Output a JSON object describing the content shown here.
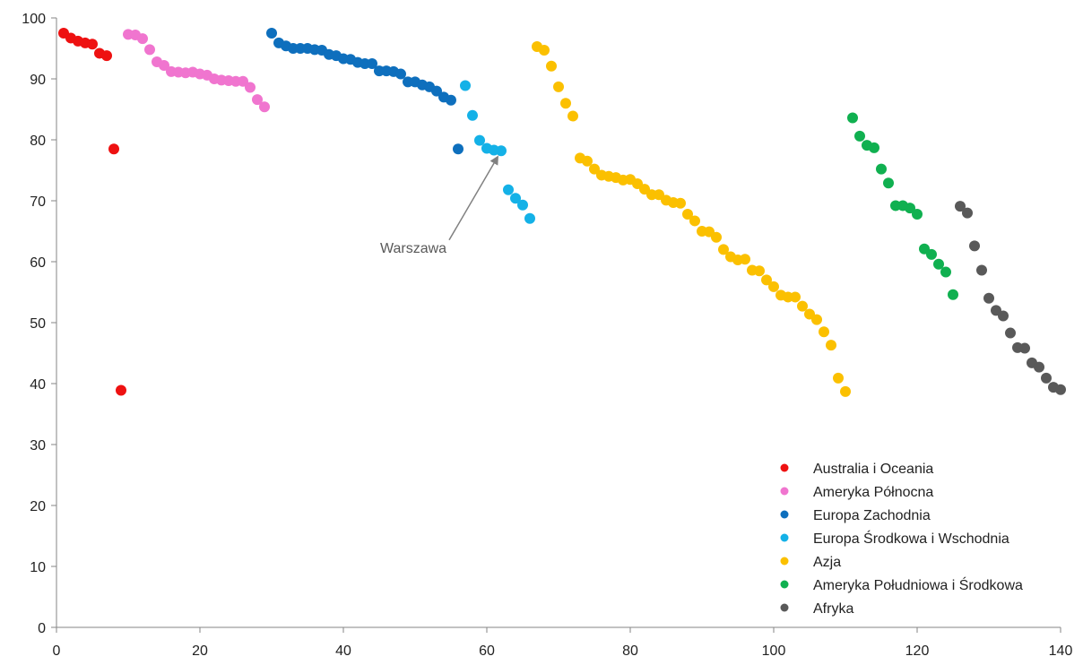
{
  "chart_data": {
    "type": "scatter",
    "title": "",
    "xlabel": "",
    "ylabel": "",
    "xlim": [
      0,
      140
    ],
    "ylim": [
      0,
      100
    ],
    "x_ticks": [
      "0",
      "20",
      "40",
      "60",
      "80",
      "100",
      "120",
      "140"
    ],
    "y_ticks": [
      "0",
      "10",
      "20",
      "30",
      "40",
      "50",
      "60",
      "70",
      "80",
      "90",
      "100"
    ],
    "grid": false,
    "legend_position": "bottom-right",
    "series": [
      {
        "name": "Australia i Oceania",
        "color": "#ee1111",
        "points": [
          [
            1,
            97.5
          ],
          [
            2,
            96.7
          ],
          [
            3,
            96.2
          ],
          [
            4,
            95.9
          ],
          [
            5,
            95.7
          ],
          [
            6,
            94.2
          ],
          [
            7,
            93.8
          ],
          [
            8,
            78.5
          ],
          [
            9,
            38.9
          ]
        ]
      },
      {
        "name": "Ameryka Północna",
        "color": "#f075cf",
        "points": [
          [
            10,
            97.3
          ],
          [
            11,
            97.2
          ],
          [
            12,
            96.6
          ],
          [
            13,
            94.8
          ],
          [
            14,
            92.8
          ],
          [
            15,
            92.2
          ],
          [
            16,
            91.2
          ],
          [
            17,
            91.1
          ],
          [
            18,
            91.0
          ],
          [
            19,
            91.1
          ],
          [
            20,
            90.8
          ],
          [
            21,
            90.6
          ],
          [
            22,
            90.0
          ],
          [
            23,
            89.8
          ],
          [
            24,
            89.7
          ],
          [
            25,
            89.6
          ],
          [
            26,
            89.6
          ],
          [
            27,
            88.6
          ],
          [
            28,
            86.6
          ],
          [
            29,
            85.4
          ]
        ]
      },
      {
        "name": "Europa Zachodnia",
        "color": "#0e6fbd",
        "points": [
          [
            30,
            97.5
          ],
          [
            31,
            95.9
          ],
          [
            32,
            95.4
          ],
          [
            33,
            95.0
          ],
          [
            34,
            95.0
          ],
          [
            35,
            95.0
          ],
          [
            36,
            94.8
          ],
          [
            37,
            94.7
          ],
          [
            38,
            94.0
          ],
          [
            39,
            93.8
          ],
          [
            40,
            93.3
          ],
          [
            41,
            93.2
          ],
          [
            42,
            92.7
          ],
          [
            43,
            92.5
          ],
          [
            44,
            92.5
          ],
          [
            45,
            91.3
          ],
          [
            46,
            91.3
          ],
          [
            47,
            91.2
          ],
          [
            48,
            90.8
          ],
          [
            49,
            89.5
          ],
          [
            50,
            89.5
          ],
          [
            51,
            89.0
          ],
          [
            52,
            88.7
          ],
          [
            53,
            88.0
          ],
          [
            54,
            87.0
          ],
          [
            55,
            86.5
          ],
          [
            56,
            78.5
          ]
        ]
      },
      {
        "name": "Europa Środkowa i Wschodnia",
        "color": "#14b1e7",
        "points": [
          [
            57,
            88.9
          ],
          [
            58,
            84.0
          ],
          [
            59,
            79.9
          ],
          [
            60,
            78.6
          ],
          [
            61,
            78.3
          ],
          [
            62,
            78.2
          ],
          [
            63,
            71.8
          ],
          [
            64,
            70.4
          ],
          [
            65,
            69.3
          ],
          [
            66,
            67.1
          ]
        ]
      },
      {
        "name": "Azja",
        "color": "#fbc000",
        "points": [
          [
            67,
            95.3
          ],
          [
            68,
            94.7
          ],
          [
            69,
            92.1
          ],
          [
            70,
            88.7
          ],
          [
            71,
            86.0
          ],
          [
            72,
            83.9
          ],
          [
            73,
            77.0
          ],
          [
            74,
            76.5
          ],
          [
            75,
            75.2
          ],
          [
            76,
            74.2
          ],
          [
            77,
            74.0
          ],
          [
            78,
            73.8
          ],
          [
            79,
            73.4
          ],
          [
            80,
            73.5
          ],
          [
            81,
            72.8
          ],
          [
            82,
            71.9
          ],
          [
            83,
            71.0
          ],
          [
            84,
            71.0
          ],
          [
            85,
            70.1
          ],
          [
            86,
            69.7
          ],
          [
            87,
            69.6
          ],
          [
            88,
            67.8
          ],
          [
            89,
            66.7
          ],
          [
            90,
            65.0
          ],
          [
            91,
            64.9
          ],
          [
            92,
            64.0
          ],
          [
            93,
            62.0
          ],
          [
            94,
            60.8
          ],
          [
            95,
            60.3
          ],
          [
            96,
            60.4
          ],
          [
            97,
            58.6
          ],
          [
            98,
            58.5
          ],
          [
            99,
            57.0
          ],
          [
            100,
            55.9
          ],
          [
            101,
            54.5
          ],
          [
            102,
            54.2
          ],
          [
            103,
            54.2
          ],
          [
            104,
            52.7
          ],
          [
            105,
            51.4
          ],
          [
            106,
            50.5
          ],
          [
            107,
            48.5
          ],
          [
            108,
            46.3
          ],
          [
            109,
            40.9
          ],
          [
            110,
            38.7
          ]
        ]
      },
      {
        "name": "Ameryka Południowa i Środkowa",
        "color": "#10b050",
        "points": [
          [
            111,
            83.6
          ],
          [
            112,
            80.6
          ],
          [
            113,
            79.1
          ],
          [
            114,
            78.7
          ],
          [
            115,
            75.2
          ],
          [
            116,
            72.9
          ],
          [
            117,
            69.2
          ],
          [
            118,
            69.2
          ],
          [
            119,
            68.8
          ],
          [
            120,
            67.8
          ],
          [
            121,
            62.1
          ],
          [
            122,
            61.2
          ],
          [
            123,
            59.6
          ],
          [
            124,
            58.3
          ],
          [
            125,
            54.6
          ]
        ]
      },
      {
        "name": "Afryka",
        "color": "#595959",
        "points": [
          [
            126,
            69.1
          ],
          [
            127,
            68.0
          ],
          [
            128,
            62.6
          ],
          [
            129,
            58.6
          ],
          [
            130,
            54.0
          ],
          [
            131,
            52.0
          ],
          [
            132,
            51.1
          ],
          [
            133,
            48.3
          ],
          [
            134,
            45.9
          ],
          [
            135,
            45.8
          ],
          [
            136,
            43.4
          ],
          [
            137,
            42.7
          ],
          [
            138,
            40.9
          ],
          [
            139,
            39.4
          ],
          [
            140,
            39.0
          ]
        ]
      }
    ],
    "annotations": [
      {
        "text": "Warszawa",
        "target": [
          62,
          78.2
        ],
        "label_at": [
          51,
          61.5
        ]
      }
    ]
  }
}
